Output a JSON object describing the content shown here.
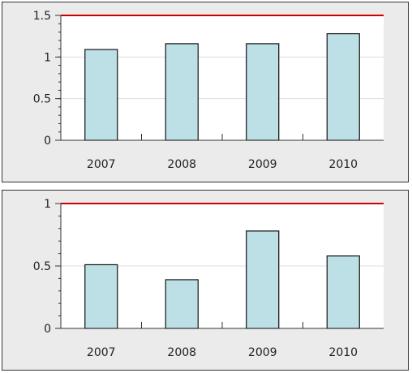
{
  "chart_data": [
    {
      "type": "bar",
      "categories": [
        "2007",
        "2008",
        "2009",
        "2010"
      ],
      "values": [
        1.09,
        1.16,
        1.16,
        1.28
      ],
      "ylim": [
        0,
        1.5
      ],
      "yticks": [
        0,
        0.5,
        1,
        1.5
      ],
      "ytick_labels": [
        "0",
        "0.5",
        "1",
        "1.5"
      ],
      "reference_line": 1.5,
      "title": "",
      "xlabel": "",
      "ylabel": "",
      "grid": true,
      "legend": "none"
    },
    {
      "type": "bar",
      "categories": [
        "2007",
        "2008",
        "2009",
        "2010"
      ],
      "values": [
        0.51,
        0.39,
        0.78,
        0.58
      ],
      "ylim": [
        0,
        1
      ],
      "yticks": [
        0,
        0.5,
        1
      ],
      "ytick_labels": [
        "0",
        "0.5",
        "1"
      ],
      "reference_line": 1,
      "title": "",
      "xlabel": "",
      "ylabel": "",
      "grid": true,
      "legend": "none"
    }
  ],
  "colors": {
    "bar_fill": "#bde0e6",
    "bar_stroke": "#111111",
    "reference_line": "#cc0000",
    "plot_background": "#ffffff",
    "panel_background": "#ebebeb",
    "gridline": "#dddddd"
  }
}
